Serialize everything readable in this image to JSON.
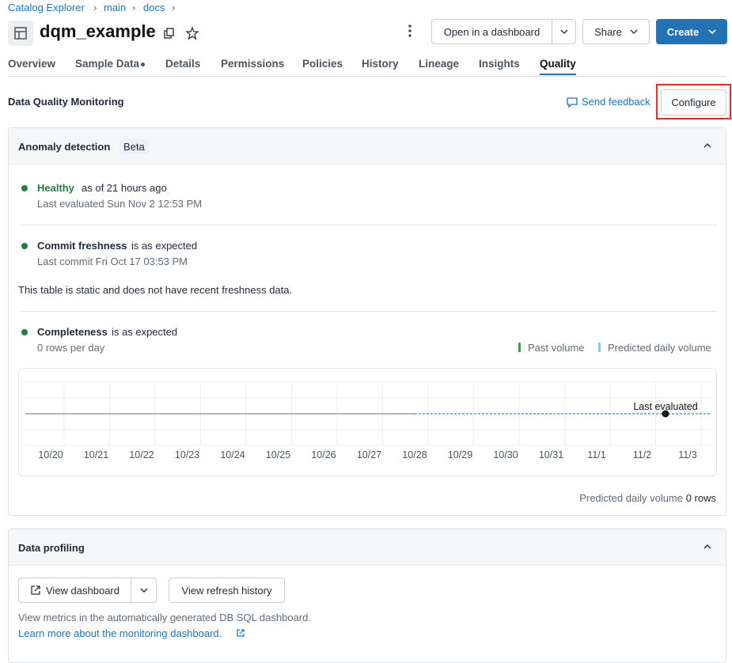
{
  "breadcrumb": [
    "Catalog Explorer",
    "main",
    "docs"
  ],
  "header": {
    "title": "dqm_example",
    "buttons": [
      "Open in a dashboard",
      "Share",
      "Create"
    ]
  },
  "tabs": [
    "Overview",
    "Sample Data",
    "Details",
    "Permissions",
    "Policies",
    "History",
    "Lineage",
    "Insights",
    "Quality"
  ],
  "active_tab": 8,
  "section": {
    "title": "Data Quality Monitoring",
    "feedback": "Send feedback",
    "configure": "Configure"
  },
  "anomaly": {
    "title": "Anomaly detection",
    "badge": "Beta",
    "health": {
      "status": "Healthy",
      "suffix": "as of 21 hours ago",
      "detail": "Last evaluated Sun Nov 2 12:53 PM"
    },
    "freshness": {
      "name": "Commit freshness",
      "suffix": "is as expected",
      "detail": "Last commit Fri Oct 17 03:53 PM",
      "note": "This table is static and does not have recent freshness data."
    },
    "completeness": {
      "name": "Completeness",
      "suffix": "is as expected",
      "detail": "0 rows per day"
    },
    "chart": {
      "type": "line",
      "categories": [
        "10/20",
        "10/21",
        "10/22",
        "10/23",
        "10/24",
        "10/25",
        "10/26",
        "10/27",
        "10/28",
        "10/29",
        "10/30",
        "10/31",
        "11/1",
        "11/2",
        "11/3"
      ],
      "series": [
        {
          "name": "Past volume",
          "color": "#3a9a4f",
          "values": [
            0,
            0,
            0,
            0,
            0,
            0,
            0,
            0,
            0,
            null,
            null,
            null,
            null,
            null,
            null
          ]
        },
        {
          "name": "Predicted daily volume",
          "color": "#8ac4ee",
          "values": [
            null,
            null,
            null,
            null,
            null,
            null,
            null,
            null,
            0,
            0,
            0,
            0,
            0,
            0,
            0
          ]
        }
      ],
      "annotation": "Last evaluated"
    },
    "footer": {
      "label": "Predicted daily volume",
      "value": "0 rows"
    }
  },
  "profiling": {
    "title": "Data profiling",
    "buttons": [
      "View dashboard",
      "View refresh history"
    ],
    "text": "View metrics in the automatically generated DB SQL dashboard.",
    "link": "Learn more about the monitoring dashboard."
  }
}
